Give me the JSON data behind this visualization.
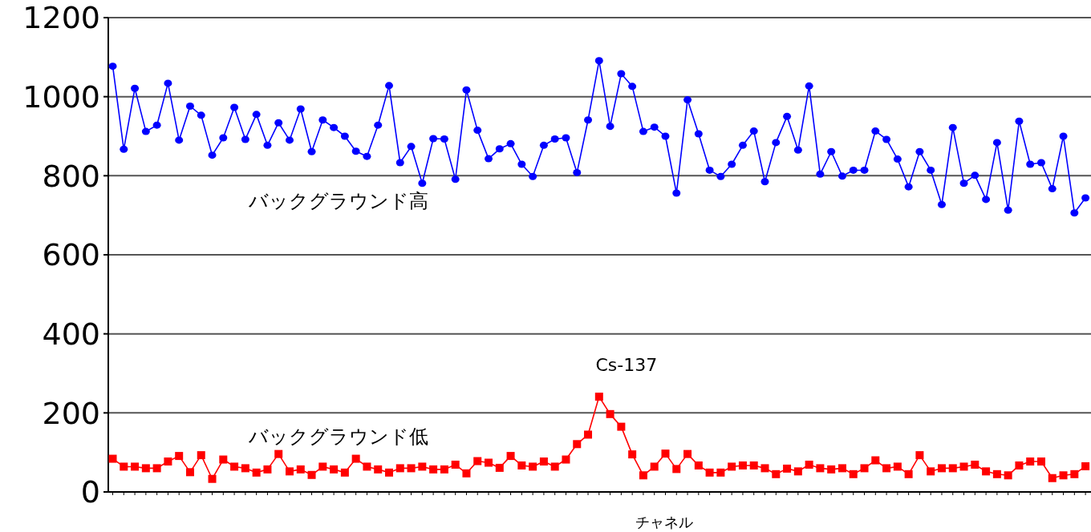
{
  "chart_data": {
    "type": "line",
    "xlabel": "チャネル",
    "categories": [
      null,
      null,
      null,
      null,
      null,
      null,
      null,
      null,
      null,
      null,
      null,
      null,
      null,
      null,
      null,
      null,
      null,
      null,
      null,
      null,
      null,
      null,
      null,
      null,
      null,
      null,
      null,
      null,
      null,
      null,
      null,
      null,
      null,
      null,
      null,
      null,
      null,
      null,
      null,
      null,
      null,
      null,
      null,
      null,
      null,
      null,
      null,
      null,
      null,
      null,
      null,
      null,
      null,
      null,
      null,
      null,
      null,
      null,
      null,
      null,
      null,
      null,
      null,
      null,
      null,
      null,
      null,
      null,
      null,
      null,
      null,
      null,
      null,
      null,
      null,
      null,
      null,
      null,
      null,
      null,
      null,
      null,
      null,
      null,
      null,
      null,
      null,
      null,
      null
    ],
    "ylim": [
      0,
      1200
    ],
    "yticks": [
      0,
      200,
      400,
      600,
      800,
      1000,
      1200
    ],
    "grid": "y",
    "annotations": [
      "Cs-137"
    ],
    "series": [
      {
        "name": "バックグラウンド高",
        "color": "#0000ff",
        "marker": "circle",
        "values": [
          1077,
          867,
          1021,
          912,
          928,
          1034,
          890,
          976,
          953,
          852,
          896,
          973,
          892,
          955,
          877,
          934,
          890,
          969,
          861,
          941,
          922,
          900,
          862,
          849,
          928,
          1028,
          833,
          874,
          781,
          894,
          893,
          791,
          1017,
          915,
          843,
          868,
          881,
          829,
          798,
          877,
          893,
          896,
          808,
          941,
          1091,
          925,
          1058,
          1026,
          912,
          923,
          900,
          756,
          992,
          906,
          814,
          798,
          829,
          877,
          913,
          785,
          884,
          950,
          865,
          1027,
          804,
          861,
          799,
          814,
          814,
          913,
          892,
          842,
          772,
          861,
          814,
          727,
          922,
          781,
          801,
          740,
          884,
          713,
          938,
          829,
          833,
          767,
          900,
          706,
          744
        ]
      },
      {
        "name": "バックグラウンド低",
        "color": "#ff0000",
        "marker": "square",
        "values": [
          84,
          64,
          64,
          60,
          60,
          77,
          91,
          50,
          93,
          33,
          82,
          64,
          60,
          49,
          57,
          96,
          52,
          57,
          43,
          64,
          57,
          49,
          84,
          64,
          57,
          49,
          60,
          60,
          64,
          57,
          57,
          69,
          47,
          78,
          74,
          61,
          91,
          67,
          64,
          77,
          64,
          82,
          121,
          145,
          241,
          197,
          165,
          95,
          42,
          64,
          97,
          58,
          96,
          67,
          49,
          49,
          64,
          67,
          67,
          60,
          45,
          59,
          52,
          69,
          60,
          57,
          60,
          45,
          60,
          80,
          60,
          64,
          45,
          93,
          52,
          60,
          60,
          64,
          69,
          52,
          45,
          42,
          67,
          77,
          77,
          35,
          42,
          45,
          65
        ]
      }
    ]
  }
}
